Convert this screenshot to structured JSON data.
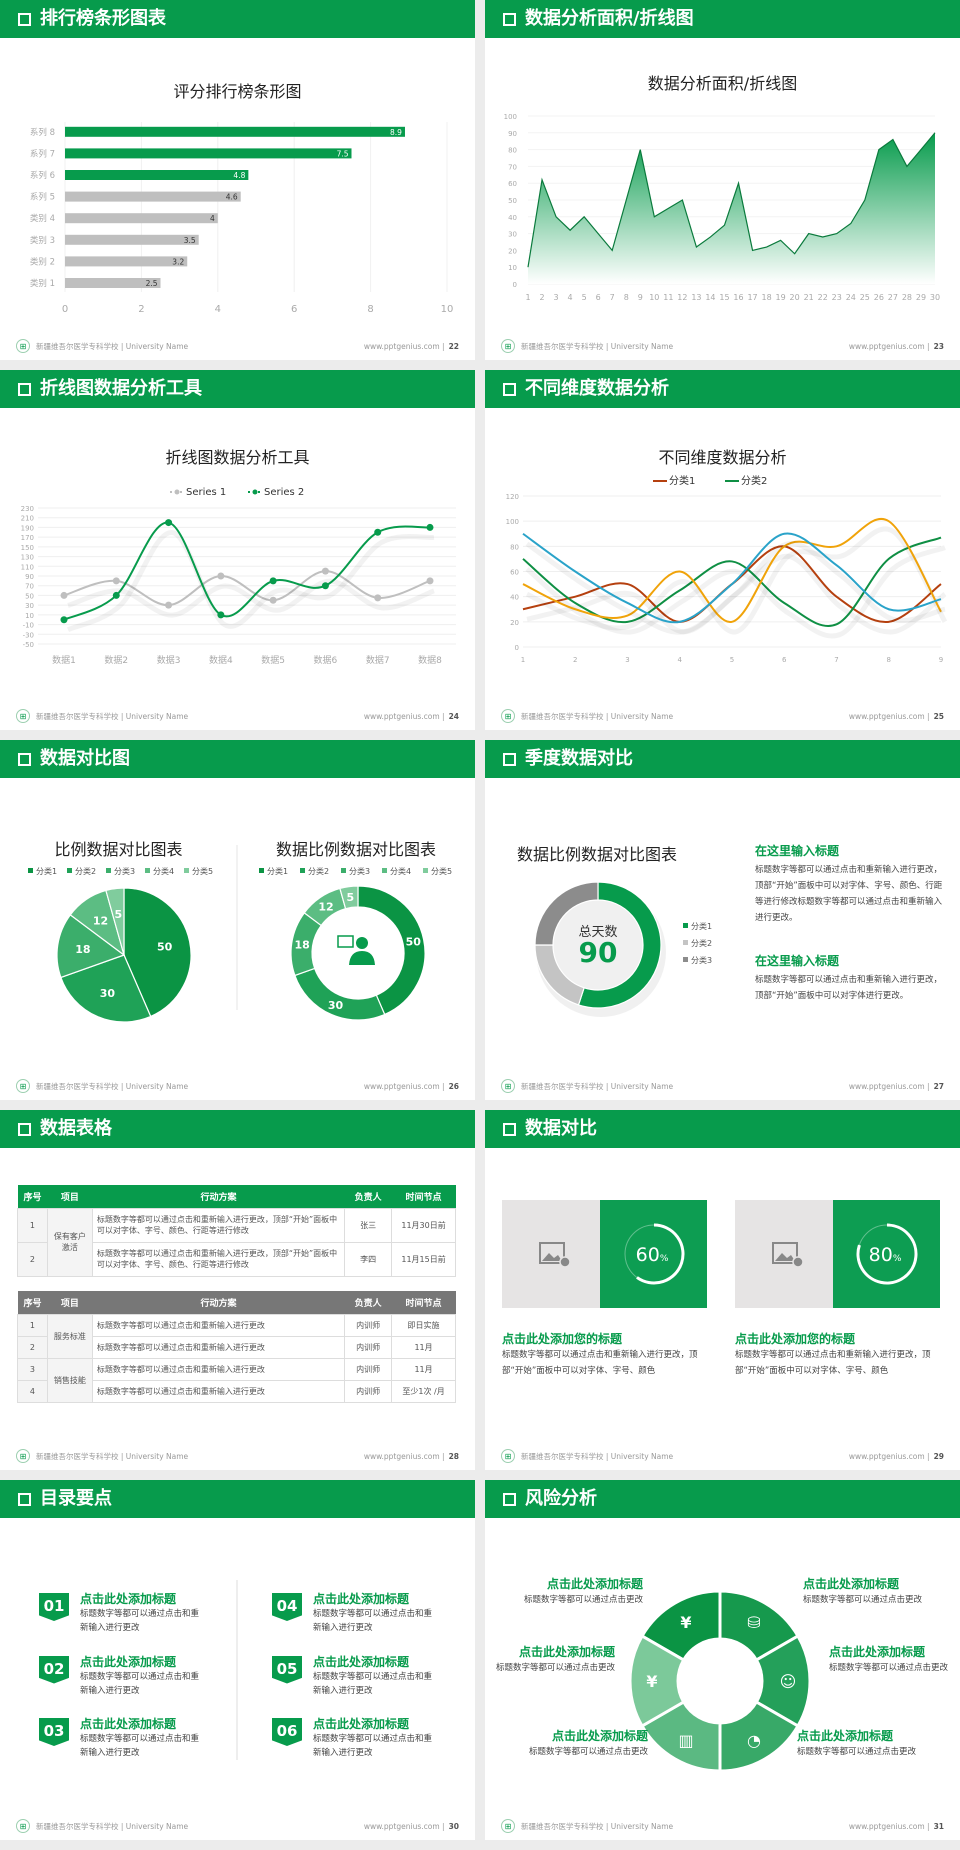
{
  "colors": {
    "primary": "#079b4c",
    "gray": "#bfbfbf",
    "dark_gray": "#8c8c8c",
    "background": "#ececec"
  },
  "footer": {
    "school": "新疆维吾尔医学专科学校 | University Name",
    "site": "www.pptgenius.com |",
    "logo_icon": "school-logo-icon"
  },
  "slides": [
    {
      "header": "排行榜条形图表",
      "page": "22"
    },
    {
      "header": "数据分析面积/折线图",
      "page": "23"
    },
    {
      "header": "折线图数据分析工具",
      "page": "24"
    },
    {
      "header": "不同维度数据分析",
      "page": "25"
    },
    {
      "header": "数据对比图",
      "page": "26"
    },
    {
      "header": "季度数据对比",
      "page": "27",
      "blocks": [
        {
          "title": "在这里输入标题",
          "text": "标题数字等都可以通过点击和重新输入进行更改，顶部“开始”面板中可以对字体、字号、颜色、行距等进行修改标题数字等都可以通过点击和重新输入进行更改。"
        },
        {
          "title": "在这里输入标题",
          "text": "标题数字等都可以通过点击和重新输入进行更改，顶部“开始”面板中可以对字体进行更改。"
        }
      ]
    },
    {
      "header": "数据表格",
      "page": "28",
      "table1": {
        "headers": [
          "序号",
          "项目",
          "行动方案",
          "负责人",
          "时间节点"
        ],
        "group": "保有客户激活",
        "rows": [
          [
            "1",
            "标题数字等都可以通过点击和重新输入进行更改，顶部“开始”面板中可以对字体、字号、颜色、行距等进行修改",
            "张三",
            "11月30日前"
          ],
          [
            "2",
            "标题数字等都可以通过点击和重新输入进行更改，顶部“开始”面板中可以对字体、字号、颜色、行距等进行修改",
            "李四",
            "11月15日前"
          ]
        ]
      },
      "table2": {
        "headers": [
          "序号",
          "项目",
          "行动方案",
          "负责人",
          "时间节点"
        ],
        "groups": [
          "服务标准",
          "销售技能"
        ],
        "rows": [
          [
            "1",
            "标题数字等都可以通过点击和重新输入进行更改",
            "内训师",
            "即日实施"
          ],
          [
            "2",
            "标题数字等都可以通过点击和重新输入进行更改",
            "内训师",
            "11月"
          ],
          [
            "3",
            "标题数字等都可以通过点击和重新输入进行更改",
            "内训师",
            "11月"
          ],
          [
            "4",
            "标题数字等都可以通过点击和重新输入进行更改",
            "内训师",
            "至少1次 /月"
          ]
        ]
      }
    },
    {
      "header": "数据对比",
      "page": "29",
      "cards": [
        {
          "percent": 60,
          "label": "60",
          "unit": "%",
          "title": "点击此处添加您的标题",
          "text": "标题数字等都可以通过点击和重新输入进行更改，顶部“开始”面板中可以对字体、字号、颜色",
          "icon": "add-image-icon"
        },
        {
          "percent": 80,
          "label": "80",
          "unit": "%",
          "title": "点击此处添加您的标题",
          "text": "标题数字等都可以通过点击和重新输入进行更改，顶部“开始”面板中可以对字体、字号、颜色",
          "icon": "add-image-icon"
        }
      ]
    },
    {
      "header": "目录要点",
      "page": "30",
      "items": [
        {
          "num": "01",
          "title": "点击此处添加标题",
          "text": "标题数字等都可以通过点击和重新输入进行更改"
        },
        {
          "num": "02",
          "title": "点击此处添加标题",
          "text": "标题数字等都可以通过点击和重新输入进行更改"
        },
        {
          "num": "03",
          "title": "点击此处添加标题",
          "text": "标题数字等都可以通过点击和重新输入进行更改"
        },
        {
          "num": "04",
          "title": "点击此处添加标题",
          "text": "标题数字等都可以通过点击和重新输入进行更改"
        },
        {
          "num": "05",
          "title": "点击此处添加标题",
          "text": "标题数字等都可以通过点击和重新输入进行更改"
        },
        {
          "num": "06",
          "title": "点击此处添加标题",
          "text": "标题数字等都可以通过点击和重新输入进行更改"
        }
      ]
    },
    {
      "header": "风险分析",
      "page": "31",
      "items": [
        {
          "title": "点击此处添加标题",
          "text": "标题数字等都可以通过点击更改",
          "icon": "money-bag-icon"
        },
        {
          "title": "点击此处添加标题",
          "text": "标题数字等都可以通过点击更改",
          "icon": "coins-icon"
        },
        {
          "title": "点击此处添加标题",
          "text": "标题数字等都可以通过点击更改",
          "icon": "people-icon"
        },
        {
          "title": "点击此处添加标题",
          "text": "标题数字等都可以通过点击更改",
          "icon": "pie-chart-icon"
        },
        {
          "title": "点击此处添加标题",
          "text": "标题数字等都可以通过点击更改",
          "icon": "building-icon"
        },
        {
          "title": "点击此处添加标题",
          "text": "标题数字等都可以通过点击更改",
          "icon": "yen-hand-icon"
        }
      ]
    }
  ],
  "chart_data": [
    {
      "type": "bar",
      "orientation": "horizontal",
      "title": "评分排行榜条形图",
      "categories": [
        "类别 1",
        "类别 2",
        "类别 3",
        "类别 4",
        "系列 5",
        "系列 6",
        "系列 7",
        "系列 8"
      ],
      "values": [
        2.5,
        3.2,
        3.5,
        4,
        4.6,
        4.8,
        7.5,
        8.9
      ],
      "bar_colors": [
        "#bfbfbf",
        "#bfbfbf",
        "#bfbfbf",
        "#bfbfbf",
        "#bfbfbf",
        "#079b4c",
        "#079b4c",
        "#079b4c"
      ],
      "xlim": [
        0,
        10
      ],
      "xticks": [
        0,
        2,
        4,
        6,
        8,
        10
      ],
      "data_labels": true,
      "grid": true
    },
    {
      "type": "area",
      "title": "数据分析面积/折线图",
      "x": [
        1,
        2,
        3,
        4,
        5,
        6,
        7,
        8,
        9,
        10,
        11,
        12,
        13,
        14,
        15,
        16,
        17,
        18,
        19,
        20,
        21,
        22,
        23,
        24,
        25,
        26,
        27,
        28,
        29,
        30
      ],
      "values": [
        10,
        62,
        40,
        32,
        40,
        30,
        20,
        50,
        80,
        40,
        45,
        50,
        22,
        28,
        35,
        60,
        20,
        22,
        26,
        18,
        30,
        28,
        30,
        36,
        50,
        80,
        86,
        70,
        80,
        90
      ],
      "ylim": [
        0,
        100
      ],
      "yticks": [
        0,
        10,
        20,
        30,
        40,
        50,
        60,
        70,
        80,
        90,
        100
      ],
      "grid": true
    },
    {
      "type": "line",
      "smooth": true,
      "title": "折线图数据分析工具",
      "categories": [
        "数据1",
        "数据2",
        "数据3",
        "数据4",
        "数据5",
        "数据6",
        "数据7",
        "数据8"
      ],
      "series": [
        {
          "name": "Series 1",
          "color": "#bfbfbf",
          "values": [
            50,
            80,
            30,
            90,
            40,
            100,
            45,
            80
          ]
        },
        {
          "name": "Series 2",
          "color": "#079b4c",
          "values": [
            0,
            50,
            200,
            10,
            80,
            70,
            180,
            190
          ]
        }
      ],
      "ylim": [
        -50,
        230
      ],
      "yticks": [
        -50,
        -30,
        -10,
        10,
        30,
        50,
        70,
        90,
        110,
        130,
        150,
        170,
        190,
        210,
        230
      ],
      "legend": "top",
      "grid": true
    },
    {
      "type": "line",
      "smooth": true,
      "title": "不同维度数据分析",
      "x": [
        1,
        2,
        3,
        4,
        5,
        6,
        7,
        8,
        9
      ],
      "series": [
        {
          "name": "分类1",
          "color": "#b5400f",
          "values": [
            30,
            40,
            50,
            20,
            50,
            80,
            40,
            20,
            50
          ]
        },
        {
          "name": "分类2",
          "color": "#0f8f44",
          "values": [
            70,
            35,
            20,
            45,
            68,
            35,
            18,
            70,
            87
          ]
        },
        {
          "color": "#f0a30a",
          "values": [
            50,
            30,
            25,
            60,
            20,
            80,
            80,
            100,
            28
          ]
        },
        {
          "color": "#2aa3c9",
          "values": [
            90,
            60,
            35,
            20,
            50,
            90,
            65,
            30,
            38
          ]
        }
      ],
      "ylim": [
        0,
        120
      ],
      "yticks": [
        0,
        20,
        40,
        60,
        80,
        100,
        120
      ],
      "legend": "top",
      "grid": true
    },
    {
      "type": "pie",
      "title": "比例数据对比图表",
      "categories": [
        "分类1",
        "分类2",
        "分类3",
        "分类4",
        "分类5"
      ],
      "values": [
        50,
        30,
        18,
        12,
        5
      ],
      "colors": [
        "#0b9444",
        "#1fa257",
        "#3bae6b",
        "#5cbd83",
        "#80cc9d"
      ],
      "legend": "top"
    },
    {
      "type": "pie",
      "donut": true,
      "title": "数据比例数据对比图表",
      "categories": [
        "分类1",
        "分类2",
        "分类3",
        "分类4",
        "分类5"
      ],
      "values": [
        50,
        30,
        18,
        12,
        5
      ],
      "colors": [
        "#0b9444",
        "#1fa257",
        "#3bae6b",
        "#5cbd83",
        "#80cc9d"
      ],
      "legend": "top",
      "center_icon": "presenter-icon"
    },
    {
      "type": "pie",
      "donut": true,
      "title": "数据比例数据对比图表",
      "center_label": "总天数",
      "center_value": "90",
      "categories": [
        "分类1",
        "分类2",
        "分类3"
      ],
      "values": [
        55,
        20,
        25
      ],
      "colors": [
        "#079b4c",
        "#c4c4c4",
        "#8c8c8c"
      ],
      "legend": "right"
    }
  ]
}
